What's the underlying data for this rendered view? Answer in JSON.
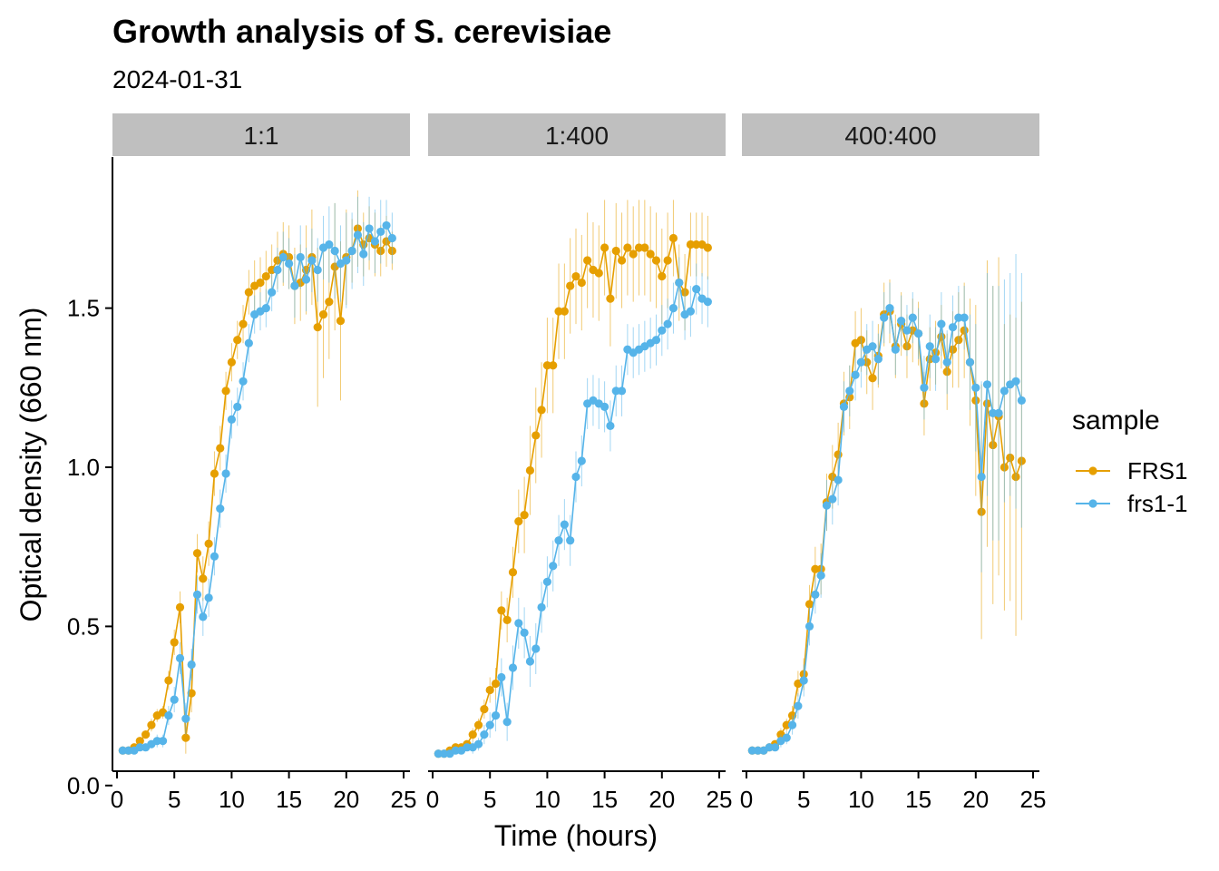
{
  "chart_data": {
    "type": "line",
    "title": "Growth analysis of S. cerevisiae",
    "subtitle": "2024-01-31",
    "xlabel": "Time (hours)",
    "ylabel": "Optical density (660 nm)",
    "xlim": [
      0,
      25
    ],
    "ylim": [
      0,
      1.85
    ],
    "x_ticks": [
      0,
      5,
      10,
      15,
      20,
      25
    ],
    "y_ticks": [
      0.0,
      0.5,
      1.0,
      1.5
    ],
    "y_tick_labels": [
      "0.0",
      "0.5",
      "1.0",
      "1.5"
    ],
    "grid": false,
    "legend": {
      "title": "sample",
      "position": "right"
    },
    "colors": {
      "FRS1": "#E69F00",
      "frs1-1": "#56B4E9",
      "strip": "#BFBFBF"
    },
    "facets": [
      {
        "label": "1:1",
        "series": [
          {
            "name": "FRS1",
            "x": [
              0.5,
              1,
              1.5,
              2,
              2.5,
              3,
              3.5,
              4,
              4.5,
              5,
              5.5,
              6,
              6.5,
              7,
              7.5,
              8,
              8.5,
              9,
              9.5,
              10,
              10.5,
              11,
              11.5,
              12,
              12.5,
              13,
              13.5,
              14,
              14.5,
              15,
              15.5,
              16,
              16.5,
              17,
              17.5,
              18,
              18.5,
              19,
              19.5,
              20,
              20.5,
              21,
              21.5,
              22,
              22.5,
              23,
              23.5,
              24
            ],
            "y": [
              0.11,
              0.11,
              0.12,
              0.14,
              0.16,
              0.19,
              0.22,
              0.23,
              0.33,
              0.45,
              0.56,
              0.15,
              0.29,
              0.73,
              0.65,
              0.76,
              0.98,
              1.06,
              1.24,
              1.33,
              1.4,
              1.45,
              1.55,
              1.57,
              1.58,
              1.6,
              1.62,
              1.65,
              1.67,
              1.66,
              1.57,
              1.58,
              1.62,
              1.66,
              1.44,
              1.48,
              1.52,
              1.63,
              1.46,
              1.66,
              1.68,
              1.75,
              1.7,
              1.72,
              1.7,
              1.68,
              1.71,
              1.68
            ],
            "err": [
              0.01,
              0.01,
              0.01,
              0.01,
              0.01,
              0.02,
              0.02,
              0.02,
              0.03,
              0.04,
              0.05,
              0.05,
              0.06,
              0.06,
              0.07,
              0.07,
              0.07,
              0.07,
              0.06,
              0.06,
              0.06,
              0.06,
              0.07,
              0.08,
              0.08,
              0.08,
              0.08,
              0.09,
              0.1,
              0.1,
              0.12,
              0.12,
              0.14,
              0.15,
              0.25,
              0.2,
              0.18,
              0.2,
              0.25,
              0.15,
              0.1,
              0.12,
              0.1,
              0.1,
              0.1,
              0.08,
              0.08,
              0.06
            ]
          },
          {
            "name": "frs1-1",
            "x": [
              0.5,
              1,
              1.5,
              2,
              2.5,
              3,
              3.5,
              4,
              4.5,
              5,
              5.5,
              6,
              6.5,
              7,
              7.5,
              8,
              8.5,
              9,
              9.5,
              10,
              10.5,
              11,
              11.5,
              12,
              12.5,
              13,
              13.5,
              14,
              14.5,
              15,
              15.5,
              16,
              16.5,
              17,
              17.5,
              18,
              18.5,
              19,
              19.5,
              20,
              20.5,
              21,
              21.5,
              22,
              22.5,
              23,
              23.5,
              24
            ],
            "y": [
              0.11,
              0.11,
              0.11,
              0.12,
              0.12,
              0.13,
              0.14,
              0.14,
              0.22,
              0.27,
              0.4,
              0.21,
              0.38,
              0.6,
              0.53,
              0.59,
              0.72,
              0.87,
              0.98,
              1.15,
              1.19,
              1.27,
              1.39,
              1.48,
              1.49,
              1.5,
              1.55,
              1.62,
              1.66,
              1.64,
              1.57,
              1.66,
              1.59,
              1.65,
              1.62,
              1.69,
              1.7,
              1.68,
              1.64,
              1.65,
              1.68,
              1.73,
              1.67,
              1.75,
              1.71,
              1.74,
              1.76,
              1.72
            ],
            "err": [
              0.01,
              0.01,
              0.01,
              0.01,
              0.01,
              0.01,
              0.02,
              0.02,
              0.03,
              0.04,
              0.05,
              0.05,
              0.05,
              0.06,
              0.06,
              0.06,
              0.06,
              0.06,
              0.06,
              0.06,
              0.06,
              0.06,
              0.06,
              0.06,
              0.06,
              0.06,
              0.06,
              0.07,
              0.08,
              0.08,
              0.1,
              0.1,
              0.1,
              0.1,
              0.1,
              0.1,
              0.12,
              0.15,
              0.12,
              0.15,
              0.12,
              0.12,
              0.1,
              0.1,
              0.1,
              0.1,
              0.08,
              0.08
            ]
          }
        ]
      },
      {
        "label": "1:400",
        "series": [
          {
            "name": "FRS1",
            "x": [
              0.5,
              1,
              1.5,
              2,
              2.5,
              3,
              3.5,
              4,
              4.5,
              5,
              5.5,
              6,
              6.5,
              7,
              7.5,
              8,
              8.5,
              9,
              9.5,
              10,
              10.5,
              11,
              11.5,
              12,
              12.5,
              13,
              13.5,
              14,
              14.5,
              15,
              15.5,
              16,
              16.5,
              17,
              17.5,
              18,
              18.5,
              19,
              19.5,
              20,
              20.5,
              21,
              21.5,
              22,
              22.5,
              23,
              23.5,
              24
            ],
            "y": [
              0.1,
              0.1,
              0.11,
              0.12,
              0.12,
              0.13,
              0.16,
              0.19,
              0.24,
              0.3,
              0.32,
              0.55,
              0.52,
              0.67,
              0.83,
              0.85,
              0.99,
              1.1,
              1.18,
              1.32,
              1.32,
              1.49,
              1.49,
              1.57,
              1.6,
              1.58,
              1.65,
              1.62,
              1.61,
              1.69,
              1.53,
              1.68,
              1.65,
              1.69,
              1.67,
              1.69,
              1.69,
              1.67,
              1.65,
              1.6,
              1.65,
              1.72,
              1.58,
              1.55,
              1.7,
              1.7,
              1.7,
              1.69
            ],
            "err": [
              0.01,
              0.01,
              0.01,
              0.01,
              0.01,
              0.01,
              0.02,
              0.02,
              0.03,
              0.04,
              0.05,
              0.06,
              0.07,
              0.08,
              0.1,
              0.12,
              0.14,
              0.15,
              0.15,
              0.15,
              0.15,
              0.15,
              0.15,
              0.15,
              0.15,
              0.15,
              0.15,
              0.15,
              0.15,
              0.15,
              0.15,
              0.15,
              0.15,
              0.15,
              0.15,
              0.15,
              0.15,
              0.15,
              0.15,
              0.15,
              0.15,
              0.12,
              0.12,
              0.12,
              0.1,
              0.1,
              0.1,
              0.1
            ]
          },
          {
            "name": "frs1-1",
            "x": [
              0.5,
              1,
              1.5,
              2,
              2.5,
              3,
              3.5,
              4,
              4.5,
              5,
              5.5,
              6,
              6.5,
              7,
              7.5,
              8,
              8.5,
              9,
              9.5,
              10,
              10.5,
              11,
              11.5,
              12,
              12.5,
              13,
              13.5,
              14,
              14.5,
              15,
              15.5,
              16,
              16.5,
              17,
              17.5,
              18,
              18.5,
              19,
              19.5,
              20,
              20.5,
              21,
              21.5,
              22,
              22.5,
              23,
              23.5,
              24
            ],
            "y": [
              0.1,
              0.1,
              0.1,
              0.11,
              0.11,
              0.12,
              0.12,
              0.13,
              0.16,
              0.19,
              0.22,
              0.34,
              0.2,
              0.37,
              0.51,
              0.48,
              0.39,
              0.43,
              0.56,
              0.64,
              0.69,
              0.77,
              0.82,
              0.77,
              0.97,
              1.02,
              1.2,
              1.21,
              1.2,
              1.19,
              1.13,
              1.24,
              1.24,
              1.37,
              1.36,
              1.37,
              1.38,
              1.39,
              1.4,
              1.43,
              1.45,
              1.5,
              1.58,
              1.48,
              1.49,
              1.56,
              1.53,
              1.52
            ],
            "err": [
              0.01,
              0.01,
              0.01,
              0.01,
              0.01,
              0.01,
              0.02,
              0.02,
              0.03,
              0.04,
              0.05,
              0.06,
              0.06,
              0.07,
              0.08,
              0.08,
              0.08,
              0.08,
              0.08,
              0.08,
              0.08,
              0.08,
              0.08,
              0.08,
              0.08,
              0.08,
              0.08,
              0.08,
              0.08,
              0.08,
              0.08,
              0.08,
              0.08,
              0.08,
              0.08,
              0.08,
              0.08,
              0.08,
              0.08,
              0.08,
              0.08,
              0.08,
              0.08,
              0.08,
              0.08,
              0.08,
              0.08,
              0.08
            ]
          }
        ]
      },
      {
        "label": "400:400",
        "series": [
          {
            "name": "FRS1",
            "x": [
              0.5,
              1,
              1.5,
              2,
              2.5,
              3,
              3.5,
              4,
              4.5,
              5,
              5.5,
              6,
              6.5,
              7,
              7.5,
              8,
              8.5,
              9,
              9.5,
              10,
              10.5,
              11,
              11.5,
              12,
              12.5,
              13,
              13.5,
              14,
              14.5,
              15,
              15.5,
              16,
              16.5,
              17,
              17.5,
              18,
              18.5,
              19,
              19.5,
              20,
              20.5,
              21,
              21.5,
              22,
              22.5,
              23,
              23.5,
              24
            ],
            "y": [
              0.11,
              0.11,
              0.11,
              0.12,
              0.13,
              0.16,
              0.19,
              0.22,
              0.32,
              0.35,
              0.57,
              0.68,
              0.68,
              0.89,
              0.97,
              1.04,
              1.2,
              1.22,
              1.39,
              1.4,
              1.33,
              1.28,
              1.35,
              1.48,
              1.49,
              1.38,
              1.45,
              1.38,
              1.43,
              1.42,
              1.2,
              1.34,
              1.36,
              1.41,
              1.3,
              1.37,
              1.4,
              1.43,
              1.33,
              1.21,
              0.86,
              1.2,
              1.07,
              1.16,
              1.0,
              1.03,
              0.97,
              1.02
            ],
            "err": [
              0.01,
              0.01,
              0.01,
              0.01,
              0.01,
              0.02,
              0.02,
              0.03,
              0.04,
              0.05,
              0.06,
              0.07,
              0.08,
              0.09,
              0.1,
              0.1,
              0.1,
              0.1,
              0.1,
              0.1,
              0.1,
              0.1,
              0.1,
              0.1,
              0.1,
              0.1,
              0.1,
              0.1,
              0.1,
              0.1,
              0.1,
              0.1,
              0.1,
              0.1,
              0.12,
              0.12,
              0.15,
              0.15,
              0.2,
              0.3,
              0.4,
              0.45,
              0.5,
              0.5,
              0.45,
              0.45,
              0.5,
              0.5
            ]
          },
          {
            "name": "frs1-1",
            "x": [
              0.5,
              1,
              1.5,
              2,
              2.5,
              3,
              3.5,
              4,
              4.5,
              5,
              5.5,
              6,
              6.5,
              7,
              7.5,
              8,
              8.5,
              9,
              9.5,
              10,
              10.5,
              11,
              11.5,
              12,
              12.5,
              13,
              13.5,
              14,
              14.5,
              15,
              15.5,
              16,
              16.5,
              17,
              17.5,
              18,
              18.5,
              19,
              19.5,
              20,
              20.5,
              21,
              21.5,
              22,
              22.5,
              23,
              23.5,
              24
            ],
            "y": [
              0.11,
              0.11,
              0.11,
              0.12,
              0.12,
              0.14,
              0.15,
              0.19,
              0.25,
              0.33,
              0.5,
              0.6,
              0.66,
              0.88,
              0.9,
              0.96,
              1.19,
              1.24,
              1.29,
              1.33,
              1.37,
              1.38,
              1.34,
              1.47,
              1.5,
              1.37,
              1.46,
              1.43,
              1.47,
              1.42,
              1.25,
              1.38,
              1.34,
              1.45,
              1.33,
              1.44,
              1.47,
              1.47,
              1.33,
              1.25,
              0.97,
              1.26,
              1.17,
              1.17,
              1.24,
              1.26,
              1.27,
              1.21
            ],
            "err": [
              0.01,
              0.01,
              0.01,
              0.01,
              0.01,
              0.02,
              0.02,
              0.03,
              0.04,
              0.05,
              0.06,
              0.06,
              0.07,
              0.08,
              0.08,
              0.08,
              0.08,
              0.08,
              0.08,
              0.08,
              0.08,
              0.08,
              0.08,
              0.08,
              0.08,
              0.08,
              0.08,
              0.08,
              0.08,
              0.08,
              0.1,
              0.1,
              0.1,
              0.1,
              0.1,
              0.1,
              0.1,
              0.1,
              0.15,
              0.2,
              0.3,
              0.35,
              0.4,
              0.4,
              0.35,
              0.35,
              0.4,
              0.4
            ]
          }
        ]
      }
    ]
  }
}
